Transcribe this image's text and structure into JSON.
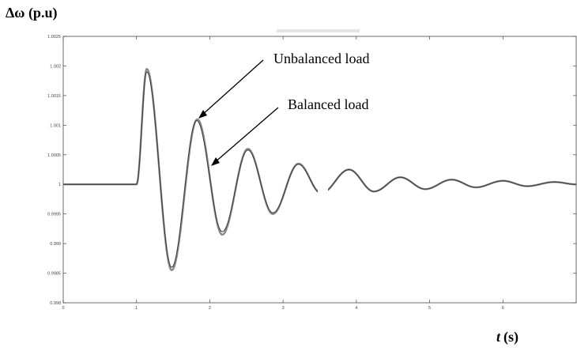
{
  "chart_data": {
    "type": "line",
    "title": "",
    "ylabel": "Δω (p.u)",
    "xlabel_italic": "t",
    "xlabel_unit": "(s)",
    "xlim": [
      0,
      7
    ],
    "ylim": [
      0.998,
      1.0025
    ],
    "x_ticks": [
      "0",
      "1",
      "2",
      "3",
      "4",
      "5",
      "6"
    ],
    "x_tick_values": [
      0,
      1,
      2,
      3,
      4,
      5,
      6
    ],
    "y_ticks": [
      "1.0025",
      "1.002",
      "1.0015",
      "1.001",
      "1.0005",
      "1",
      "0.9995",
      "0.999",
      "0.9985",
      "0.998"
    ],
    "y_tick_values": [
      1.0025,
      1.002,
      1.0015,
      1.001,
      1.0005,
      1,
      0.9995,
      0.999,
      0.9985,
      0.998
    ],
    "grid": false,
    "series": [
      {
        "color": "#888888",
        "x": [
          0,
          1,
          1.14,
          1.48,
          1.83,
          2.17,
          2.52,
          2.86,
          3.21,
          3.52,
          3.9,
          4.24,
          4.6,
          4.94,
          5.3,
          5.63,
          6,
          6.33,
          6.7,
          7
        ],
        "y": [
          1.0,
          1.0,
          1.00195,
          0.99855,
          1.0011,
          0.99915,
          1.0006,
          0.9995,
          1.00035,
          0.99985,
          1.00025,
          0.99988,
          1.00012,
          0.99992,
          1.00008,
          0.99995,
          1.00006,
          0.99997,
          1.00004,
          1.0
        ]
      },
      {
        "color": "#3a3a3a",
        "x": [
          0,
          1,
          1.14,
          1.48,
          1.82,
          2.17,
          2.52,
          2.86,
          3.21,
          3.52,
          3.9,
          4.24,
          4.6,
          4.94,
          5.3,
          5.63,
          6,
          6.33,
          6.7,
          7
        ],
        "y": [
          1.0,
          1.0,
          1.0019,
          0.9986,
          1.00108,
          0.9992,
          1.00058,
          0.99952,
          1.00034,
          0.99985,
          1.00025,
          0.99988,
          1.00012,
          0.99992,
          1.00008,
          0.99995,
          1.00006,
          0.99997,
          1.00004,
          1.0
        ]
      }
    ],
    "annotations": [
      {
        "text": "Unbalanced load",
        "x": 1.85,
        "y": 1.0011
      },
      {
        "text": "Balanced load",
        "x": 1.95,
        "y": 1.00045
      }
    ]
  }
}
